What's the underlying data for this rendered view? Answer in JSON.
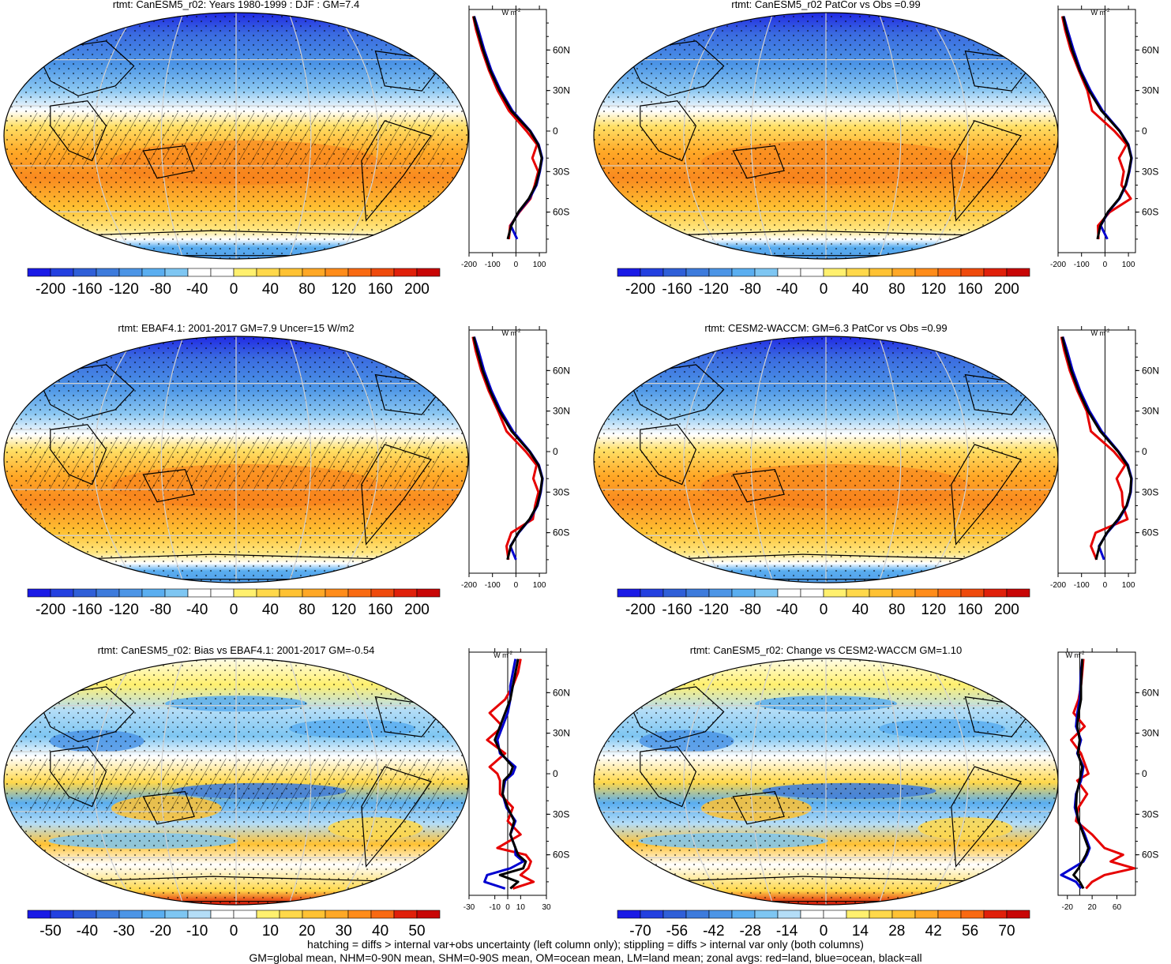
{
  "footer": {
    "line1": "hatching = diffs > internal var+obs uncertainty (left column only); stippling = diffs > internal var only (both columns)",
    "line2": "GM=global mean, NHM=0-90N mean, SHM=0-90S mean, OM=ocean mean, LM=land mean; zonal avgs: red=land, blue=ocean, black=all"
  },
  "colors": {
    "abs_scale": [
      "#1a1ae6",
      "#2340e0",
      "#2f5fd8",
      "#3d7bdc",
      "#4c95e6",
      "#5aaef0",
      "#7ec6f2",
      "#ffffff",
      "#ffffff",
      "#fff06e",
      "#ffd84a",
      "#ffc233",
      "#ffa826",
      "#ff8c1a",
      "#f96a12",
      "#ef4a0c",
      "#e0200a",
      "#c80606"
    ],
    "diff_scale": [
      "#1a1ae6",
      "#2340e0",
      "#2f5fd8",
      "#3d7bdc",
      "#4c95e6",
      "#5aaef0",
      "#7ec6f2",
      "#b4ddf7",
      "#ffffff",
      "#ffffff",
      "#fff06e",
      "#ffd84a",
      "#ffc233",
      "#ffa826",
      "#ff8c1a",
      "#f96a12",
      "#e0200a",
      "#c80606"
    ],
    "land_line": "#e60000",
    "ocean_line": "#0000d0",
    "all_line": "#000000"
  },
  "chart_data": [
    {
      "type": "heatmap",
      "id": "p1",
      "title": "rtmt: CanESM5_r02: Years 1980-1999 : DJF : GM=7.4",
      "colorbar_ticks": [
        "-200",
        "-160",
        "-120",
        "-80",
        "-40",
        "0",
        "40",
        "80",
        "120",
        "160",
        "200"
      ],
      "zonal": {
        "unit_label": "W m",
        "unit_sup": "-2",
        "xticks": [
          {
            "v": -200,
            "t": "-200"
          },
          {
            "v": -100,
            "t": "-100"
          },
          {
            "v": 0,
            "t": "0"
          },
          {
            "v": 100,
            "t": "100"
          }
        ],
        "xlim": [
          -200,
          130
        ],
        "ylim": [
          -90,
          90
        ],
        "yticks": [
          "60N",
          "30N",
          "0",
          "30S",
          "60S"
        ],
        "lat": [
          85,
          75,
          60,
          45,
          30,
          15,
          0,
          -10,
          -20,
          -30,
          -40,
          -50,
          -60,
          -70,
          -80
        ],
        "all": [
          -180,
          -165,
          -140,
          -110,
          -70,
          -20,
          60,
          95,
          110,
          100,
          85,
          55,
          10,
          -20,
          -35
        ],
        "land": [
          -182,
          -170,
          -145,
          -115,
          -78,
          -30,
          45,
          90,
          70,
          95,
          80,
          62,
          15,
          -25,
          -30
        ],
        "ocean": [
          -178,
          -160,
          -135,
          -105,
          -65,
          -15,
          62,
          97,
          112,
          102,
          88,
          58,
          12,
          -22,
          5
        ]
      }
    },
    {
      "type": "heatmap",
      "id": "p2",
      "title": "rtmt: CanESM5_r02 PatCor vs Obs =0.99",
      "colorbar_ticks": [
        "-200",
        "-160",
        "-120",
        "-80",
        "-40",
        "0",
        "40",
        "80",
        "120",
        "160",
        "200"
      ],
      "zonal": {
        "unit_label": "W m",
        "unit_sup": "-2",
        "xticks": [
          {
            "v": -200,
            "t": "-200"
          },
          {
            "v": -100,
            "t": "-100"
          },
          {
            "v": 0,
            "t": "0"
          },
          {
            "v": 100,
            "t": "100"
          }
        ],
        "xlim": [
          -200,
          130
        ],
        "ylim": [
          -90,
          90
        ],
        "yticks": [
          "60N",
          "30N",
          "0",
          "30S",
          "60S"
        ],
        "lat": [
          85,
          75,
          60,
          45,
          30,
          15,
          0,
          -10,
          -20,
          -30,
          -40,
          -50,
          -60,
          -70,
          -80
        ],
        "all": [
          -178,
          -165,
          -140,
          -108,
          -68,
          -15,
          62,
          98,
          112,
          102,
          88,
          60,
          12,
          -20,
          -32
        ],
        "land": [
          -182,
          -170,
          -146,
          -112,
          -75,
          -55,
          40,
          92,
          60,
          80,
          70,
          110,
          20,
          -30,
          -28
        ],
        "ocean": [
          -176,
          -160,
          -134,
          -104,
          -62,
          -10,
          64,
          100,
          114,
          104,
          90,
          62,
          14,
          -18,
          10
        ]
      }
    },
    {
      "type": "heatmap",
      "id": "p3",
      "title": "rtmt: EBAF4.1: 2001-2017 GM=7.9 Uncer=15 W/m2",
      "colorbar_ticks": [
        "-200",
        "-160",
        "-120",
        "-80",
        "-40",
        "0",
        "40",
        "80",
        "120",
        "160",
        "200"
      ],
      "zonal": {
        "unit_label": "W m",
        "unit_sup": "-2",
        "xticks": [
          {
            "v": -200,
            "t": "-200"
          },
          {
            "v": -100,
            "t": "-100"
          },
          {
            "v": 0,
            "t": "0"
          },
          {
            "v": 100,
            "t": "100"
          }
        ],
        "xlim": [
          -200,
          130
        ],
        "ylim": [
          -90,
          90
        ],
        "yticks": [
          "60N",
          "30N",
          "0",
          "30S",
          "60S"
        ],
        "lat": [
          85,
          75,
          60,
          45,
          30,
          15,
          0,
          -10,
          -20,
          -30,
          -40,
          -50,
          -60,
          -70,
          -80
        ],
        "all": [
          -180,
          -166,
          -142,
          -110,
          -70,
          -18,
          58,
          96,
          112,
          104,
          90,
          58,
          10,
          -22,
          -36
        ],
        "land": [
          -184,
          -172,
          -148,
          -116,
          -76,
          -40,
          42,
          88,
          74,
          96,
          82,
          72,
          -20,
          -40,
          -32
        ],
        "ocean": [
          -178,
          -160,
          -136,
          -104,
          -64,
          -12,
          60,
          98,
          114,
          106,
          92,
          60,
          12,
          -24,
          0
        ]
      }
    },
    {
      "type": "heatmap",
      "id": "p4",
      "title": "rtmt: CESM2-WACCM: GM=6.3 PatCor vs Obs =0.99",
      "colorbar_ticks": [
        "-200",
        "-160",
        "-120",
        "-80",
        "-40",
        "0",
        "40",
        "80",
        "120",
        "160",
        "200"
      ],
      "zonal": {
        "unit_label": "W m",
        "unit_sup": "-2",
        "xticks": [
          {
            "v": -200,
            "t": "-200"
          },
          {
            "v": -100,
            "t": "-100"
          },
          {
            "v": 0,
            "t": "0"
          },
          {
            "v": 100,
            "t": "100"
          }
        ],
        "xlim": [
          -200,
          130
        ],
        "ylim": [
          -90,
          90
        ],
        "yticks": [
          "60N",
          "30N",
          "0",
          "30S",
          "60S"
        ],
        "lat": [
          85,
          75,
          60,
          45,
          30,
          15,
          0,
          -10,
          -20,
          -30,
          -40,
          -50,
          -60,
          -70,
          -80
        ],
        "all": [
          -182,
          -168,
          -144,
          -112,
          -72,
          -20,
          56,
          95,
          112,
          108,
          92,
          56,
          8,
          -24,
          -38
        ],
        "land": [
          -186,
          -174,
          -150,
          -118,
          -78,
          -60,
          38,
          86,
          50,
          72,
          76,
          96,
          -40,
          -60,
          -36
        ],
        "ocean": [
          -180,
          -162,
          -138,
          -106,
          -66,
          -14,
          58,
          98,
          114,
          110,
          94,
          60,
          10,
          -26,
          -4
        ]
      }
    },
    {
      "type": "heatmap",
      "id": "p5",
      "title": "rtmt: CanESM5_r02: Bias vs EBAF4.1: 2001-2017 GM=-0.54",
      "colorbar_ticks": [
        "-50",
        "-40",
        "-30",
        "-20",
        "-10",
        "0",
        "10",
        "20",
        "30",
        "40",
        "50"
      ],
      "zonal": {
        "unit_label": "W m",
        "unit_sup": "-2",
        "xticks": [
          {
            "v": -30,
            "t": "-30"
          },
          {
            "v": -10,
            "t": "-10"
          },
          {
            "v": 0,
            "t": "0"
          },
          {
            "v": 10,
            "t": "10"
          },
          {
            "v": 30,
            "t": "30"
          }
        ],
        "xlim": [
          -30,
          30
        ],
        "ylim": [
          -90,
          90
        ],
        "yticks": [
          "60N",
          "30N",
          "0",
          "30S",
          "60S"
        ],
        "lat": [
          85,
          75,
          65,
          55,
          45,
          35,
          25,
          15,
          5,
          0,
          -5,
          -15,
          -25,
          -35,
          -45,
          -55,
          -60,
          -65,
          -70,
          -75,
          -80,
          -85
        ],
        "all": [
          8,
          6,
          4,
          2,
          -2,
          -6,
          -10,
          -5,
          4,
          2,
          -3,
          -4,
          0,
          5,
          2,
          6,
          8,
          14,
          12,
          -6,
          8,
          2
        ],
        "land": [
          10,
          8,
          4,
          -2,
          -14,
          -4,
          -16,
          -2,
          -14,
          -8,
          -6,
          -6,
          4,
          0,
          10,
          -8,
          14,
          18,
          16,
          10,
          20,
          4
        ],
        "ocean": [
          6,
          4,
          2,
          2,
          0,
          -4,
          -8,
          -6,
          6,
          4,
          -2,
          -4,
          -1,
          6,
          2,
          6,
          6,
          12,
          2,
          -16,
          -18,
          -2
        ]
      }
    },
    {
      "type": "heatmap",
      "id": "p6",
      "title": "rtmt: CanESM5_r02: Change vs CESM2-WACCM GM=1.10",
      "colorbar_ticks": [
        "-70",
        "-56",
        "-42",
        "-28",
        "-14",
        "0",
        "14",
        "28",
        "42",
        "56",
        "70"
      ],
      "zonal": {
        "unit_label": "W m",
        "unit_sup": "-2",
        "xticks": [
          {
            "v": -20,
            "t": "-20"
          },
          {
            "v": 20,
            "t": "20"
          },
          {
            "v": 60,
            "t": "60"
          }
        ],
        "xlim": [
          -35,
          90
        ],
        "ylim": [
          -90,
          90
        ],
        "yticks": [
          "60N",
          "30N",
          "0",
          "30S",
          "60S"
        ],
        "lat": [
          85,
          75,
          65,
          55,
          45,
          35,
          25,
          15,
          5,
          0,
          -5,
          -15,
          -25,
          -35,
          -45,
          -55,
          -60,
          -65,
          -70,
          -75,
          -80,
          -85
        ],
        "all": [
          4,
          3,
          2,
          2,
          -2,
          -4,
          0,
          -3,
          4,
          2,
          0,
          -5,
          -6,
          -2,
          6,
          14,
          10,
          4,
          -2,
          -10,
          0,
          6
        ],
        "land": [
          6,
          4,
          2,
          -2,
          -10,
          8,
          -14,
          2,
          10,
          14,
          -4,
          12,
          -2,
          -6,
          20,
          40,
          70,
          50,
          88,
          40,
          20,
          10
        ],
        "ocean": [
          4,
          2,
          1,
          0,
          -4,
          -6,
          2,
          -4,
          6,
          4,
          2,
          -6,
          -8,
          -2,
          8,
          16,
          12,
          6,
          -12,
          -30,
          -6,
          2
        ]
      }
    }
  ]
}
